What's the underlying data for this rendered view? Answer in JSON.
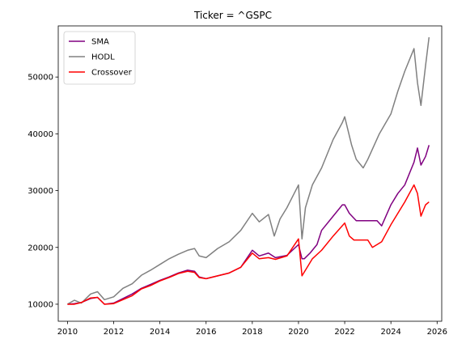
{
  "chart_data": {
    "type": "line",
    "title": "Ticker = ^GSPC",
    "xlabel": "",
    "ylabel": "",
    "xlim": [
      2009.6,
      2026.2
    ],
    "ylim": [
      7000,
      59000
    ],
    "xticks": [
      2010,
      2012,
      2014,
      2016,
      2018,
      2020,
      2022,
      2024,
      2026
    ],
    "yticks": [
      10000,
      20000,
      30000,
      40000,
      50000
    ],
    "grid": false,
    "legend_position": "top-left",
    "series": [
      {
        "name": "SMA",
        "color": "#800080",
        "x": [
          2010.0,
          2010.3,
          2010.6,
          2011.0,
          2011.3,
          2011.6,
          2012.0,
          2012.4,
          2012.8,
          2013.2,
          2013.6,
          2014.0,
          2014.4,
          2014.8,
          2015.2,
          2015.5,
          2015.7,
          2016.0,
          2016.5,
          2017.0,
          2017.5,
          2018.0,
          2018.3,
          2018.7,
          2019.0,
          2019.5,
          2020.0,
          2020.15,
          2020.25,
          2020.5,
          2020.8,
          2021.0,
          2021.5,
          2021.9,
          2022.0,
          2022.2,
          2022.5,
          2023.0,
          2023.4,
          2023.6,
          2024.0,
          2024.3,
          2024.6,
          2025.0,
          2025.15,
          2025.3,
          2025.5,
          2025.65
        ],
        "y": [
          10000,
          10100,
          10300,
          11000,
          11200,
          10000,
          10200,
          11000,
          11800,
          12800,
          13500,
          14200,
          14800,
          15500,
          16000,
          15800,
          14800,
          14500,
          15000,
          15500,
          16500,
          19500,
          18500,
          19000,
          18200,
          18600,
          20500,
          18000,
          18000,
          19000,
          20500,
          23000,
          25500,
          27500,
          27500,
          26000,
          24700,
          24700,
          24700,
          23800,
          27500,
          29500,
          31000,
          35000,
          37500,
          34500,
          36000,
          38000
        ]
      },
      {
        "name": "HODL",
        "color": "#808080",
        "x": [
          2010.0,
          2010.3,
          2010.6,
          2011.0,
          2011.3,
          2011.6,
          2012.0,
          2012.4,
          2012.8,
          2013.2,
          2013.6,
          2014.0,
          2014.4,
          2014.8,
          2015.2,
          2015.5,
          2015.7,
          2016.0,
          2016.5,
          2017.0,
          2017.5,
          2018.0,
          2018.3,
          2018.7,
          2018.95,
          2019.2,
          2019.5,
          2020.0,
          2020.15,
          2020.3,
          2020.6,
          2021.0,
          2021.5,
          2021.9,
          2022.0,
          2022.3,
          2022.5,
          2022.8,
          2023.0,
          2023.5,
          2024.0,
          2024.3,
          2024.6,
          2025.0,
          2025.15,
          2025.3,
          2025.5,
          2025.65
        ],
        "y": [
          10000,
          10700,
          10200,
          11800,
          12200,
          10800,
          11300,
          12800,
          13600,
          15100,
          16000,
          17000,
          18000,
          18800,
          19500,
          19800,
          18500,
          18200,
          19800,
          21000,
          23000,
          26000,
          24500,
          25800,
          22000,
          25000,
          27000,
          31000,
          21500,
          27000,
          31000,
          34000,
          39000,
          42000,
          43000,
          38000,
          35500,
          34000,
          35500,
          40000,
          43500,
          47500,
          51000,
          55000,
          49000,
          45000,
          52000,
          57000
        ]
      },
      {
        "name": "Crossover",
        "color": "#ff0000",
        "x": [
          2010.0,
          2010.3,
          2010.6,
          2011.0,
          2011.3,
          2011.6,
          2012.0,
          2012.4,
          2012.8,
          2013.2,
          2013.6,
          2014.0,
          2014.4,
          2014.8,
          2015.2,
          2015.5,
          2015.7,
          2016.0,
          2016.5,
          2017.0,
          2017.5,
          2018.0,
          2018.3,
          2018.7,
          2019.0,
          2019.5,
          2020.0,
          2020.15,
          2020.3,
          2020.6,
          2021.0,
          2021.5,
          2022.0,
          2022.2,
          2022.4,
          2023.0,
          2023.2,
          2023.6,
          2024.0,
          2024.3,
          2024.6,
          2025.0,
          2025.15,
          2025.3,
          2025.5,
          2025.65
        ],
        "y": [
          10000,
          10000,
          10300,
          11100,
          11200,
          10000,
          10100,
          10800,
          11500,
          12700,
          13300,
          14100,
          14700,
          15400,
          15800,
          15600,
          14700,
          14500,
          15000,
          15500,
          16500,
          19000,
          18000,
          18200,
          17900,
          18500,
          21500,
          15000,
          16000,
          18000,
          19500,
          22000,
          24300,
          22000,
          21300,
          21300,
          20000,
          21000,
          24000,
          26000,
          28000,
          31000,
          29500,
          25500,
          27500,
          28000
        ]
      }
    ]
  }
}
